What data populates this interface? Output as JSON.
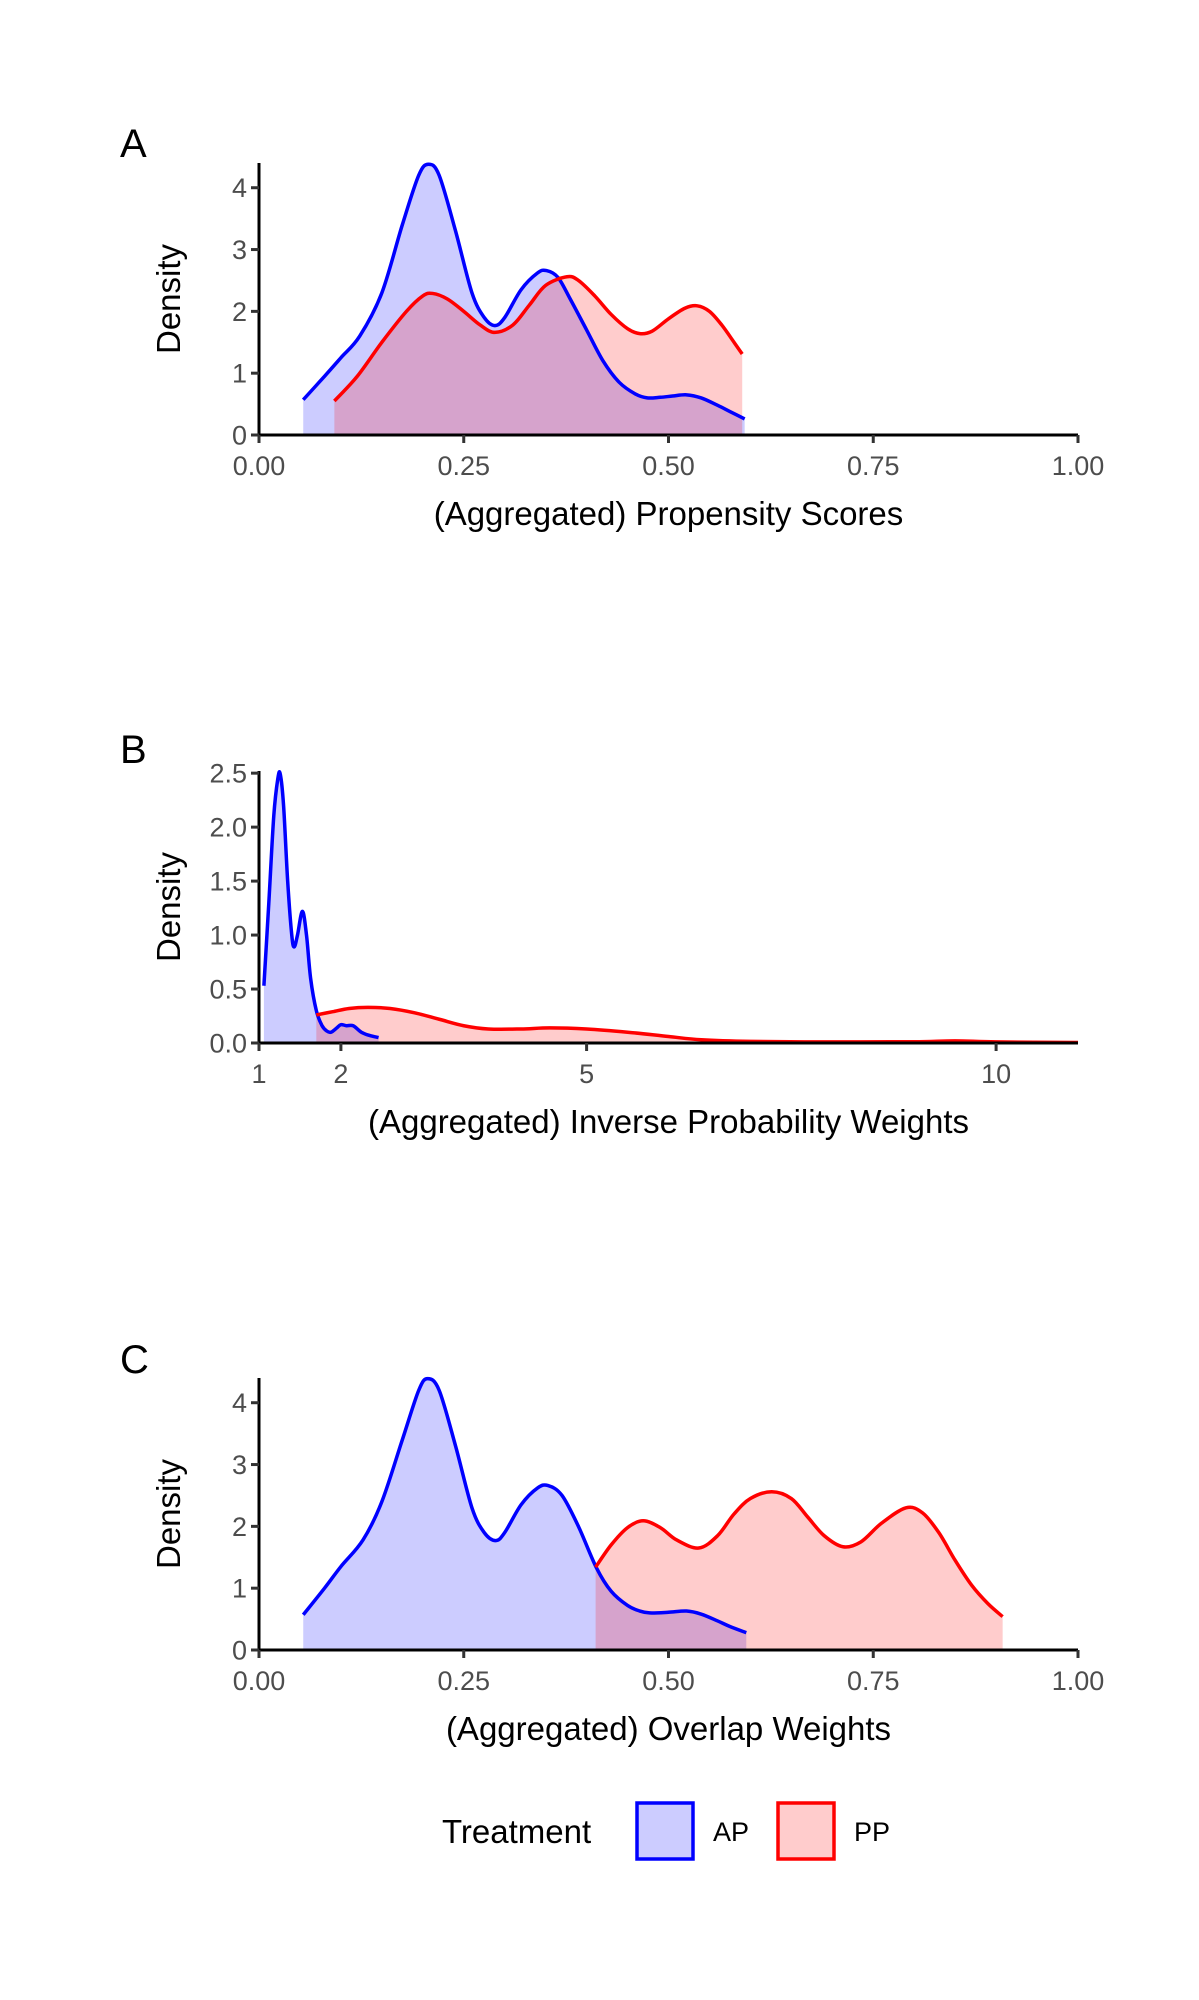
{
  "colors": {
    "AP_line": "#0000ff",
    "AP_fill": "#0000ff",
    "PP_line": "#ff0000",
    "PP_fill": "#ff0000",
    "fill_opacity": 0.2
  },
  "legend": {
    "title": "Treatment",
    "items": [
      {
        "label": "AP",
        "series": "AP"
      },
      {
        "label": "PP",
        "series": "PP"
      }
    ],
    "position": "bottom"
  },
  "chart_data": [
    {
      "panel": "A",
      "type": "area",
      "title": "",
      "xlabel": "(Aggregated) Propensity Scores",
      "ylabel": "Density",
      "xlim": [
        0,
        1
      ],
      "ylim": [
        0,
        4.4
      ],
      "xticks": [
        0,
        0.25,
        0.5,
        0.75,
        1.0
      ],
      "xtick_labels": [
        "0.00",
        "0.25",
        "0.50",
        "0.75",
        "1.00"
      ],
      "yticks": [
        0,
        1,
        2,
        3,
        4
      ],
      "ytick_labels": [
        "0",
        "1",
        "2",
        "3",
        "4"
      ],
      "grid": false,
      "series": [
        {
          "name": "AP",
          "x": [
            0.054,
            0.08,
            0.1,
            0.123,
            0.15,
            0.175,
            0.195,
            0.207,
            0.22,
            0.24,
            0.26,
            0.275,
            0.288,
            0.3,
            0.32,
            0.34,
            0.351,
            0.365,
            0.38,
            0.4,
            0.42,
            0.44,
            0.46,
            0.474,
            0.49,
            0.505,
            0.522,
            0.54,
            0.56,
            0.575,
            0.593
          ],
          "y": [
            0.57,
            0.95,
            1.25,
            1.6,
            2.3,
            3.4,
            4.2,
            4.38,
            4.2,
            3.3,
            2.3,
            1.9,
            1.77,
            1.9,
            2.35,
            2.62,
            2.66,
            2.55,
            2.2,
            1.7,
            1.2,
            0.85,
            0.66,
            0.6,
            0.61,
            0.63,
            0.65,
            0.6,
            0.48,
            0.38,
            0.26
          ]
        },
        {
          "name": "PP",
          "x": [
            0.092,
            0.12,
            0.15,
            0.18,
            0.2,
            0.212,
            0.23,
            0.25,
            0.27,
            0.288,
            0.31,
            0.33,
            0.35,
            0.376,
            0.39,
            0.41,
            0.43,
            0.45,
            0.465,
            0.48,
            0.5,
            0.52,
            0.535,
            0.55,
            0.565,
            0.58,
            0.59
          ],
          "y": [
            0.55,
            0.95,
            1.5,
            2.0,
            2.25,
            2.29,
            2.2,
            2.0,
            1.78,
            1.66,
            1.78,
            2.1,
            2.42,
            2.56,
            2.5,
            2.25,
            1.95,
            1.72,
            1.64,
            1.68,
            1.88,
            2.05,
            2.09,
            2.0,
            1.78,
            1.5,
            1.31
          ]
        }
      ]
    },
    {
      "panel": "B",
      "type": "area",
      "title": "",
      "xlabel": "(Aggregated) Inverse Probability Weights",
      "ylabel": "Density",
      "xlim": [
        1,
        11
      ],
      "ylim": [
        0,
        2.52
      ],
      "xticks": [
        1,
        2,
        5,
        10
      ],
      "xtick_labels": [
        "1",
        "2",
        "5",
        "10"
      ],
      "yticks": [
        0,
        0.5,
        1.0,
        1.5,
        2.0,
        2.5
      ],
      "ytick_labels": [
        "0.0",
        "0.5",
        "1.0",
        "1.5",
        "2.0",
        "2.5"
      ],
      "grid": false,
      "series": [
        {
          "name": "AP",
          "x": [
            1.06,
            1.12,
            1.18,
            1.23,
            1.26,
            1.3,
            1.35,
            1.4,
            1.43,
            1.47,
            1.53,
            1.58,
            1.63,
            1.7,
            1.77,
            1.83,
            1.88,
            1.95,
            2.0,
            2.07,
            2.15,
            2.25,
            2.35,
            2.46
          ],
          "y": [
            0.53,
            1.3,
            2.1,
            2.45,
            2.49,
            2.2,
            1.5,
            1.0,
            0.89,
            1.0,
            1.22,
            1.0,
            0.6,
            0.3,
            0.16,
            0.11,
            0.1,
            0.14,
            0.17,
            0.16,
            0.16,
            0.1,
            0.07,
            0.05
          ]
        },
        {
          "name": "PP",
          "x": [
            1.7,
            1.9,
            2.1,
            2.33,
            2.6,
            2.9,
            3.2,
            3.5,
            3.8,
            4.2,
            4.55,
            5.0,
            5.5,
            6.0,
            6.4,
            7.0,
            8.0,
            9.0,
            9.5,
            10.0,
            11.0
          ],
          "y": [
            0.26,
            0.29,
            0.32,
            0.33,
            0.32,
            0.28,
            0.22,
            0.16,
            0.13,
            0.13,
            0.14,
            0.13,
            0.1,
            0.06,
            0.03,
            0.015,
            0.01,
            0.012,
            0.02,
            0.01,
            0.005
          ]
        }
      ]
    },
    {
      "panel": "C",
      "type": "area",
      "title": "",
      "xlabel": "(Aggregated) Overlap Weights",
      "ylabel": "Density",
      "xlim": [
        0,
        1
      ],
      "ylim": [
        0,
        4.4
      ],
      "xticks": [
        0,
        0.25,
        0.5,
        0.75,
        1.0
      ],
      "xtick_labels": [
        "0.00",
        "0.25",
        "0.50",
        "0.75",
        "1.00"
      ],
      "yticks": [
        0,
        1,
        2,
        3,
        4
      ],
      "ytick_labels": [
        "0",
        "1",
        "2",
        "3",
        "4"
      ],
      "grid": false,
      "series": [
        {
          "name": "AP",
          "x": [
            0.054,
            0.08,
            0.1,
            0.127,
            0.15,
            0.175,
            0.195,
            0.206,
            0.22,
            0.24,
            0.26,
            0.275,
            0.289,
            0.3,
            0.32,
            0.34,
            0.353,
            0.37,
            0.39,
            0.412,
            0.43,
            0.45,
            0.465,
            0.477,
            0.5,
            0.522,
            0.54,
            0.56,
            0.575,
            0.595
          ],
          "y": [
            0.57,
            1.0,
            1.35,
            1.78,
            2.4,
            3.4,
            4.2,
            4.39,
            4.2,
            3.3,
            2.3,
            1.9,
            1.77,
            1.9,
            2.35,
            2.62,
            2.66,
            2.5,
            2.0,
            1.33,
            0.95,
            0.72,
            0.63,
            0.6,
            0.61,
            0.63,
            0.58,
            0.47,
            0.38,
            0.28
          ]
        },
        {
          "name": "PP",
          "x": [
            0.411,
            0.43,
            0.45,
            0.469,
            0.49,
            0.51,
            0.537,
            0.56,
            0.58,
            0.6,
            0.626,
            0.65,
            0.67,
            0.69,
            0.713,
            0.735,
            0.76,
            0.79,
            0.81,
            0.83,
            0.85,
            0.87,
            0.89,
            0.908
          ],
          "y": [
            1.34,
            1.7,
            1.98,
            2.09,
            1.98,
            1.78,
            1.65,
            1.85,
            2.2,
            2.45,
            2.56,
            2.45,
            2.15,
            1.85,
            1.67,
            1.75,
            2.05,
            2.3,
            2.22,
            1.9,
            1.45,
            1.05,
            0.75,
            0.54
          ]
        }
      ]
    }
  ]
}
